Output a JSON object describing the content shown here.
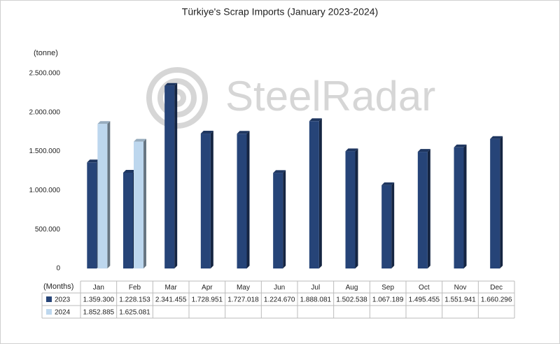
{
  "chart_data": {
    "type": "bar",
    "title": "Türkiye's Scrap Imports (January 2023-2024)",
    "y_axis_label": "(tonne)",
    "x_axis_label": "(Months)",
    "watermark": "SteelRadar",
    "categories": [
      "Jan",
      "Feb",
      "Mar",
      "Apr",
      "May",
      "Jun",
      "Jul",
      "Aug",
      "Sep",
      "Oct",
      "Nov",
      "Dec"
    ],
    "series": [
      {
        "name": "2023",
        "color": "#264478",
        "values": [
          1359300,
          1228153,
          2341455,
          1728951,
          1727018,
          1224670,
          1888081,
          1502538,
          1067189,
          1495455,
          1551941,
          1660296
        ],
        "value_labels": [
          "1.359.300",
          "1.228.153",
          "2.341.455",
          "1.728.951",
          "1.727.018",
          "1.224.670",
          "1.888.081",
          "1.502.538",
          "1.067.189",
          "1.495.455",
          "1.551.941",
          "1.660.296"
        ]
      },
      {
        "name": "2024",
        "color": "#bdd7ee",
        "values": [
          1852885,
          1625081,
          null,
          null,
          null,
          null,
          null,
          null,
          null,
          null,
          null,
          null
        ],
        "value_labels": [
          "1.852.885",
          "1.625.081",
          null,
          null,
          null,
          null,
          null,
          null,
          null,
          null,
          null,
          null
        ]
      }
    ],
    "ylim": [
      0,
      2500000
    ],
    "yticks": [
      0,
      {
        "value": 500000,
        "label": "500.000"
      },
      {
        "value": 1000000,
        "label": "1.000.000"
      },
      {
        "value": 1500000,
        "label": "1.500.000"
      },
      {
        "value": 2000000,
        "label": "2.000.000"
      },
      {
        "value": 2500000,
        "label": "2.500.000"
      }
    ],
    "grid": false,
    "data_table": true
  }
}
